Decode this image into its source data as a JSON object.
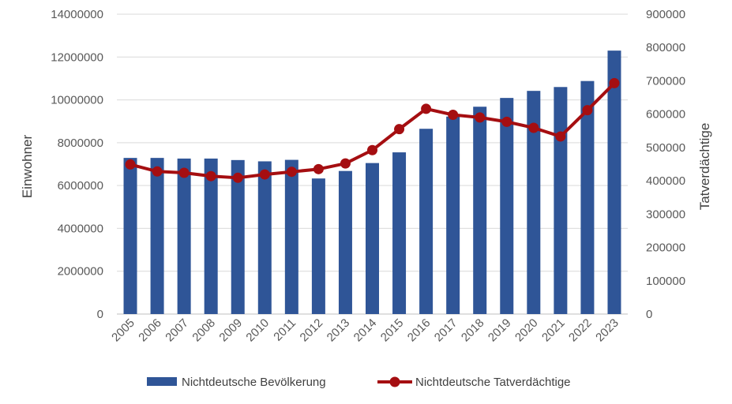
{
  "chart_data": {
    "type": "bar",
    "categories": [
      "2005",
      "2006",
      "2007",
      "2008",
      "2009",
      "2010",
      "2011",
      "2012",
      "2013",
      "2014",
      "2015",
      "2016",
      "2017",
      "2018",
      "2019",
      "2020",
      "2021",
      "2022",
      "2023"
    ],
    "ylabel": "Einwohner",
    "y2label": "Tatverdächtige",
    "ylim": [
      0,
      14000000
    ],
    "y2lim": [
      0,
      900000
    ],
    "yticks": [
      "0",
      "2000000",
      "4000000",
      "6000000",
      "8000000",
      "10000000",
      "12000000",
      "14000000"
    ],
    "y2ticks": [
      "0",
      "100000",
      "200000",
      "300000",
      "400000",
      "500000",
      "600000",
      "700000",
      "800000",
      "900000"
    ],
    "grid": true,
    "legend_position": "bottom",
    "series": [
      {
        "name": "Nichtdeutsche Bevölkerung",
        "type": "bar",
        "axis": "left",
        "color": "#2F5597",
        "values": [
          7290000,
          7290000,
          7260000,
          7260000,
          7190000,
          7130000,
          7200000,
          6330000,
          6680000,
          7050000,
          7550000,
          8650000,
          9220000,
          9680000,
          10090000,
          10420000,
          10600000,
          10880000,
          12300000
        ]
      },
      {
        "name": "Nichtdeutsche Tatverdächtige",
        "type": "line",
        "axis": "right",
        "color": "#A50E11",
        "values": [
          449000,
          428000,
          424000,
          414000,
          409000,
          419000,
          427000,
          435000,
          452000,
          492000,
          555000,
          616000,
          598000,
          590000,
          577000,
          559000,
          533000,
          612000,
          693000
        ]
      }
    ]
  }
}
